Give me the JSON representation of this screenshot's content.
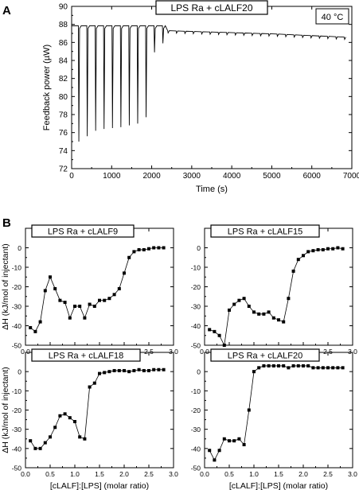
{
  "panel_labels": [
    "A",
    "B"
  ],
  "chart_data": [
    {
      "type": "line",
      "panel": "A",
      "title": "LPS Ra + cLALF20",
      "annotation": "40 °C",
      "xlabel": "Time (s)",
      "ylabel": "Feedback power (µW)",
      "xlim": [
        0,
        7000
      ],
      "ylim": [
        72,
        90
      ],
      "xticks": [
        0,
        1000,
        2000,
        3000,
        4000,
        5000,
        6000,
        7000
      ],
      "yticks": [
        72,
        74,
        76,
        78,
        80,
        82,
        84,
        86,
        88,
        90
      ],
      "baseline_before": 87.85,
      "injection_interval_s": 210,
      "injection_dips": [
        {
          "t": 180,
          "y": 75.0
        },
        {
          "t": 390,
          "y": 75.6
        },
        {
          "t": 600,
          "y": 76.2
        },
        {
          "t": 810,
          "y": 76.4
        },
        {
          "t": 1020,
          "y": 76.5
        },
        {
          "t": 1230,
          "y": 76.6
        },
        {
          "t": 1440,
          "y": 76.8
        },
        {
          "t": 1650,
          "y": 77.0
        },
        {
          "t": 1860,
          "y": 77.7
        },
        {
          "t": 2070,
          "y": 84.9
        },
        {
          "t": 2280,
          "y": 85.9
        }
      ],
      "baseline_after": [
        [
          2400,
          87.3
        ],
        [
          3500,
          87.15
        ],
        [
          5000,
          86.95
        ],
        [
          7000,
          86.55
        ]
      ]
    },
    {
      "type": "scatter",
      "panel": "B1",
      "title": "LPS Ra + cLALF9",
      "xlabel": "",
      "ylabel": "ΔH (kJ/mol of injectant)",
      "xlim": [
        0.0,
        3.0
      ],
      "ylim": [
        -50,
        10
      ],
      "xticks": [
        0.0,
        0.5,
        1.0,
        1.5,
        2.0,
        2.5,
        3.0
      ],
      "yticks": [
        -50,
        -40,
        -30,
        -20,
        -10,
        0
      ],
      "x": [
        0.1,
        0.2,
        0.3,
        0.4,
        0.5,
        0.6,
        0.7,
        0.8,
        0.9,
        1.0,
        1.1,
        1.2,
        1.3,
        1.4,
        1.5,
        1.6,
        1.7,
        1.8,
        1.9,
        2.0,
        2.1,
        2.2,
        2.3,
        2.4,
        2.5,
        2.6,
        2.7,
        2.8
      ],
      "y": [
        -41,
        -43,
        -38,
        -22,
        -15,
        -21,
        -27,
        -28,
        -36,
        -30,
        -30,
        -36,
        -29,
        -30,
        -27,
        -27,
        -26,
        -24,
        -21,
        -13,
        -5,
        -2,
        -1,
        -1,
        -0.5,
        0,
        0,
        0
      ]
    },
    {
      "type": "scatter",
      "panel": "B2",
      "title": "LPS Ra + cLALF15",
      "xlabel": "",
      "ylabel": "",
      "xlim": [
        0.0,
        3.0
      ],
      "ylim": [
        -50,
        10
      ],
      "xticks": [
        0.0,
        0.5,
        1.0,
        1.5,
        2.0,
        2.5,
        3.0
      ],
      "yticks": [
        -50,
        -40,
        -30,
        -20,
        -10,
        0
      ],
      "x": [
        0.1,
        0.2,
        0.3,
        0.4,
        0.5,
        0.6,
        0.7,
        0.8,
        0.9,
        1.0,
        1.1,
        1.2,
        1.3,
        1.4,
        1.5,
        1.6,
        1.7,
        1.8,
        1.9,
        2.0,
        2.1,
        2.2,
        2.3,
        2.4,
        2.5,
        2.6,
        2.7,
        2.8
      ],
      "y": [
        -42,
        -43,
        -45,
        -50,
        -32,
        -29,
        -27,
        -26,
        -30,
        -33,
        -34,
        -34,
        -33,
        -36,
        -37,
        -38,
        -26,
        -12,
        -6,
        -4,
        -2,
        -1.5,
        -1,
        -1,
        -0.5,
        -0.5,
        0,
        -0.5
      ]
    },
    {
      "type": "scatter",
      "panel": "B3",
      "title": "LPS Ra + cLALF18",
      "xlabel": "[cLALF]:[LPS] (molar ratio)",
      "ylabel": "ΔH (kJ/mol of injectant)",
      "xlim": [
        0.0,
        3.0
      ],
      "ylim": [
        -50,
        10
      ],
      "xticks": [
        0.0,
        0.5,
        1.0,
        1.5,
        2.0,
        2.5,
        3.0
      ],
      "yticks": [
        -50,
        -40,
        -30,
        -20,
        -10,
        0
      ],
      "x": [
        0.1,
        0.2,
        0.3,
        0.4,
        0.5,
        0.6,
        0.7,
        0.8,
        0.9,
        1.0,
        1.1,
        1.2,
        1.3,
        1.4,
        1.5,
        1.6,
        1.7,
        1.8,
        1.9,
        2.0,
        2.1,
        2.2,
        2.3,
        2.4,
        2.5,
        2.6,
        2.7,
        2.8
      ],
      "y": [
        -36,
        -40,
        -40,
        -37,
        -34,
        -29,
        -23,
        -22,
        -24,
        -26,
        -34,
        -35,
        -8,
        -6,
        -1,
        -0.5,
        0,
        0.5,
        0.5,
        0.5,
        0,
        0.5,
        1,
        0.5,
        0.5,
        1,
        1,
        1
      ]
    },
    {
      "type": "scatter",
      "panel": "B4",
      "title": "LPS Ra + cLALF20",
      "xlabel": "[cLALF]:[LPS] (molar ratio)",
      "ylabel": "",
      "xlim": [
        0.0,
        3.0
      ],
      "ylim": [
        -50,
        10
      ],
      "xticks": [
        0.0,
        0.5,
        1.0,
        1.5,
        2.0,
        2.5,
        3.0
      ],
      "yticks": [
        -50,
        -40,
        -30,
        -20,
        -10,
        0
      ],
      "x": [
        0.1,
        0.2,
        0.3,
        0.4,
        0.5,
        0.6,
        0.7,
        0.8,
        0.9,
        1.0,
        1.1,
        1.2,
        1.3,
        1.4,
        1.5,
        1.6,
        1.7,
        1.8,
        1.9,
        2.0,
        2.1,
        2.2,
        2.3,
        2.4,
        2.5,
        2.6,
        2.7,
        2.8
      ],
      "y": [
        -41,
        -46,
        -41,
        -35,
        -36,
        -36,
        -35,
        -38,
        -20,
        0,
        2,
        3,
        3,
        3,
        3,
        3,
        2,
        3,
        3,
        3,
        3,
        2,
        2,
        2,
        2,
        2,
        2,
        2
      ]
    }
  ]
}
